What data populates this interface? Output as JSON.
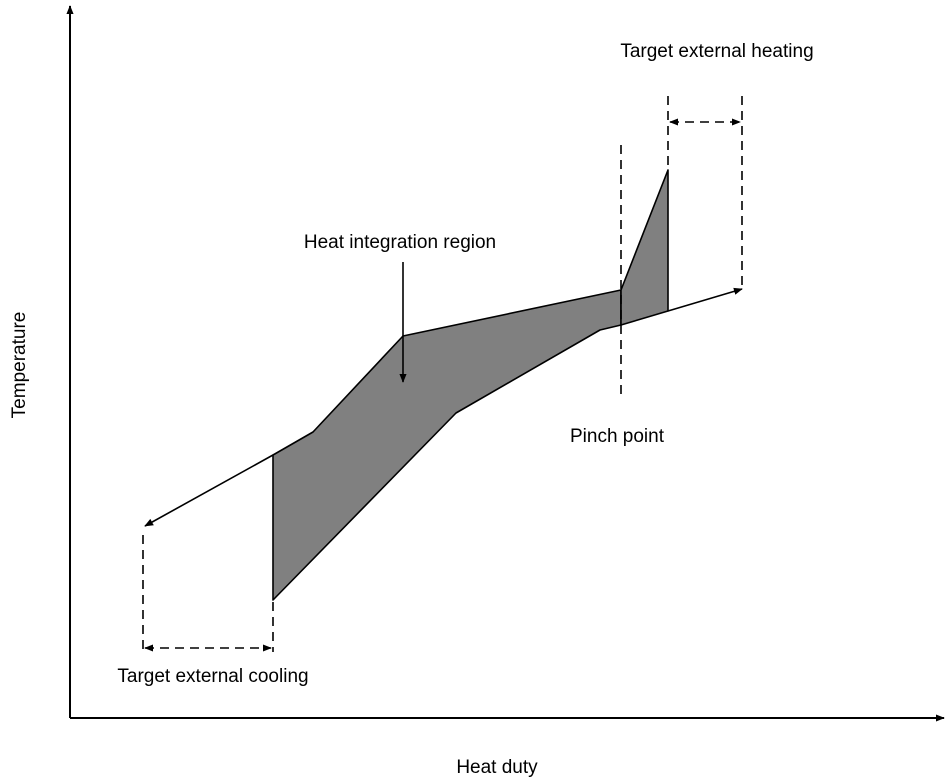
{
  "axes": {
    "y_label": "Temperature",
    "x_label": "Heat duty"
  },
  "annotations": {
    "heating": "Target external heating",
    "region": "Heat integration region",
    "pinch": "Pinch point",
    "cooling": "Target external cooling"
  }
}
